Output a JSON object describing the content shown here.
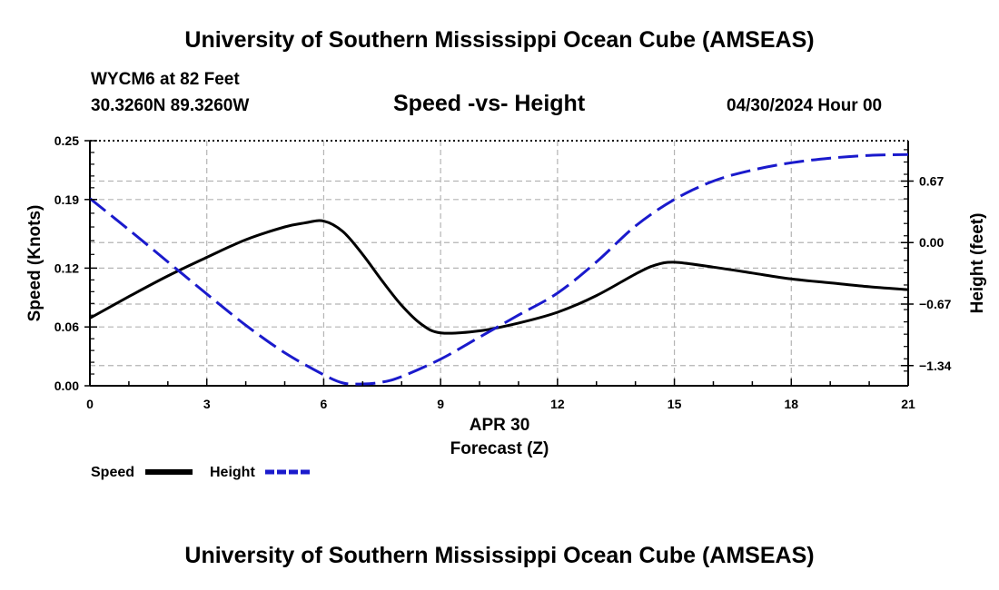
{
  "header": {
    "title": "University of Southern Mississippi Ocean Cube (AMSEAS)",
    "station": "WYCM6 at 82 Feet",
    "coords": "30.3260N  89.3260W",
    "chart_title": "Speed -vs- Height",
    "datetime": "04/30/2024 Hour 00"
  },
  "footer": {
    "title": "University of Southern Mississippi Ocean Cube (AMSEAS)"
  },
  "colors": {
    "speed": "#000000",
    "height": "#1a1acc",
    "grid": "#b4b4b4"
  },
  "chart_data": {
    "type": "line",
    "title": "Speed -vs- Height",
    "xlabel": "Forecast (Z)",
    "xlabel_date": "APR 30",
    "ylabel": "Speed (Knots)",
    "y2label": "Height (feet)",
    "xlim": [
      0,
      21
    ],
    "ylim": [
      0,
      0.25
    ],
    "y2lim": [
      -1.56,
      1.11
    ],
    "x_ticks": [
      0,
      3,
      6,
      9,
      12,
      15,
      18,
      21
    ],
    "x_tick_labels": [
      "0",
      "3",
      "6",
      "9",
      "12",
      "15",
      "18",
      "21"
    ],
    "y_ticks": [
      0.0,
      0.06,
      0.12,
      0.19,
      0.25
    ],
    "y_tick_labels": [
      "0.00",
      "0.06",
      "0.12",
      "0.19",
      "0.25"
    ],
    "y2_ticks": [
      0.67,
      0.0,
      -0.67,
      -1.34
    ],
    "y2_tick_labels": [
      "0.67",
      "0.00",
      "−0.67",
      "−1.34"
    ],
    "grid": true,
    "legend_position": "bottom-left",
    "series": [
      {
        "name": "Speed",
        "axis": "left",
        "style": "solid",
        "x": [
          0,
          1,
          2,
          3,
          4,
          5,
          5.5,
          6,
          6.5,
          7,
          7.5,
          8,
          8.5,
          9,
          10,
          11,
          12,
          13,
          14,
          14.5,
          15,
          16,
          17,
          18,
          19,
          20,
          21
        ],
        "values": [
          0.069,
          0.091,
          0.112,
          0.131,
          0.149,
          0.162,
          0.166,
          0.168,
          0.157,
          0.134,
          0.107,
          0.082,
          0.063,
          0.054,
          0.056,
          0.064,
          0.075,
          0.092,
          0.114,
          0.123,
          0.126,
          0.121,
          0.115,
          0.109,
          0.105,
          0.101,
          0.098
        ]
      },
      {
        "name": "Height",
        "axis": "right",
        "style": "dashed",
        "x": [
          0,
          1,
          2,
          3,
          4,
          5,
          6,
          6.5,
          7,
          7.5,
          8,
          9,
          10,
          11,
          12,
          13,
          14,
          15,
          16,
          17,
          18,
          19,
          20,
          21
        ],
        "values": [
          0.48,
          0.14,
          -0.21,
          -0.56,
          -0.9,
          -1.2,
          -1.44,
          -1.53,
          -1.54,
          -1.52,
          -1.46,
          -1.27,
          -1.03,
          -0.79,
          -0.55,
          -0.21,
          0.18,
          0.47,
          0.67,
          0.79,
          0.87,
          0.92,
          0.95,
          0.96
        ]
      }
    ]
  }
}
